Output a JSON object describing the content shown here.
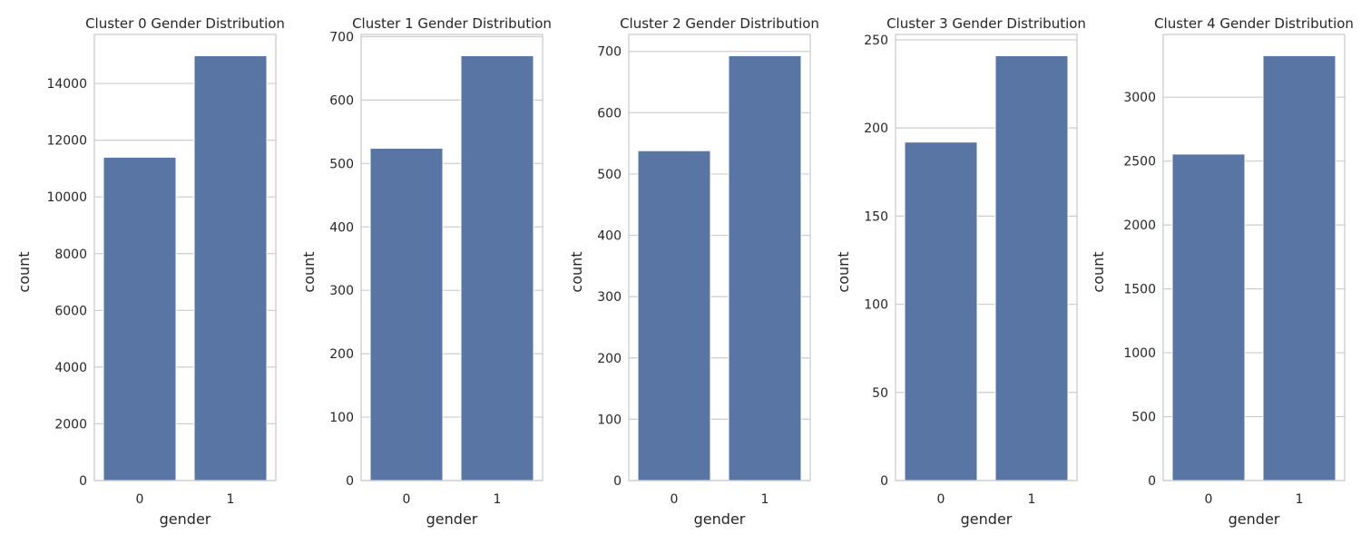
{
  "figure": {
    "background": "#ffffff",
    "bar_color": "#5875a4",
    "grid_color": "#cccccc",
    "spine_color": "#cccccc",
    "text_color": "#262626"
  },
  "chart_data": [
    {
      "type": "bar",
      "title": "Cluster 0 Gender Distribution",
      "xlabel": "gender",
      "ylabel": "count",
      "categories": [
        "0",
        "1"
      ],
      "values": [
        11400,
        14980
      ],
      "ylim": [
        0,
        15729
      ],
      "yticks": [
        0,
        2000,
        4000,
        6000,
        8000,
        10000,
        12000,
        14000
      ],
      "grid": true
    },
    {
      "type": "bar",
      "title": "Cluster 1 Gender Distribution",
      "xlabel": "gender",
      "ylabel": "count",
      "categories": [
        "0",
        "1"
      ],
      "values": [
        524,
        670
      ],
      "ylim": [
        0,
        703.5
      ],
      "yticks": [
        0,
        100,
        200,
        300,
        400,
        500,
        600,
        700
      ],
      "grid": true
    },
    {
      "type": "bar",
      "title": "Cluster 2 Gender Distribution",
      "xlabel": "gender",
      "ylabel": "count",
      "categories": [
        "0",
        "1"
      ],
      "values": [
        538,
        693
      ],
      "ylim": [
        0,
        727.65
      ],
      "yticks": [
        0,
        100,
        200,
        300,
        400,
        500,
        600,
        700
      ],
      "grid": true
    },
    {
      "type": "bar",
      "title": "Cluster 3 Gender Distribution",
      "xlabel": "gender",
      "ylabel": "count",
      "categories": [
        "0",
        "1"
      ],
      "values": [
        192,
        241
      ],
      "ylim": [
        0,
        253.05
      ],
      "yticks": [
        0,
        50,
        100,
        150,
        200,
        250
      ],
      "grid": true
    },
    {
      "type": "bar",
      "title": "Cluster 4 Gender Distribution",
      "xlabel": "gender",
      "ylabel": "count",
      "categories": [
        "0",
        "1"
      ],
      "values": [
        2555,
        3325
      ],
      "ylim": [
        0,
        3491
      ],
      "yticks": [
        0,
        500,
        1000,
        1500,
        2000,
        2500,
        3000
      ],
      "grid": true
    }
  ]
}
